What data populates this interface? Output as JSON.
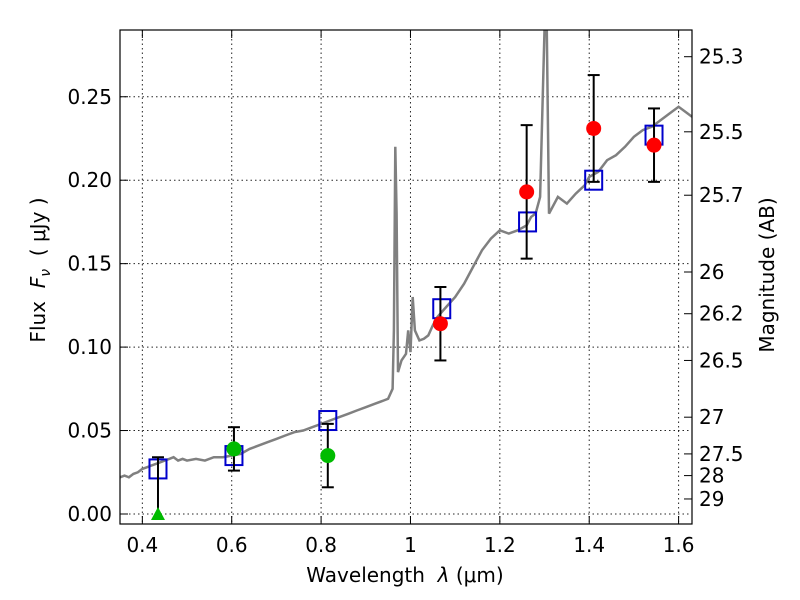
{
  "chart_data": {
    "type": "scatter",
    "xlabel_prefix": "Wavelength",
    "xlabel_symbol": "λ",
    "xlabel_unit": "(μm)",
    "ylabel_prefix": "Flux",
    "ylabel_symbol": "F",
    "ylabel_subscript": "ν",
    "ylabel_unit": "( μJy )",
    "y2label": "Magnitude (AB)",
    "xlim": [
      0.35,
      1.63
    ],
    "ylim": [
      -0.006,
      0.29
    ],
    "grid": true,
    "x_ticks": [
      0.4,
      0.6,
      0.8,
      1.0,
      1.2,
      1.4,
      1.6
    ],
    "x_tick_labels": [
      "0.4",
      "0.6",
      "0.8",
      "1",
      "1.2",
      "1.4",
      "1.6"
    ],
    "y_ticks": [
      0.0,
      0.05,
      0.1,
      0.15,
      0.2,
      0.25
    ],
    "y_tick_labels": [
      "0.00",
      "0.05",
      "0.10",
      "0.15",
      "0.20",
      "0.25"
    ],
    "mag_ticks": [
      {
        "label": "25.3",
        "flux": 0.274
      },
      {
        "label": "25.5",
        "flux": 0.229
      },
      {
        "label": "25.7",
        "flux": 0.191
      },
      {
        "label": "26",
        "flux": 0.145
      },
      {
        "label": "26.2",
        "flux": 0.12
      },
      {
        "label": "26.5",
        "flux": 0.092
      },
      {
        "label": "27",
        "flux": 0.058
      },
      {
        "label": "27.5",
        "flux": 0.036
      },
      {
        "label": "28",
        "flux": 0.023
      },
      {
        "label": "29",
        "flux": 0.009
      }
    ],
    "series": [
      {
        "kind": "line",
        "color": "#808080",
        "points": [
          [
            0.35,
            0.022
          ],
          [
            0.36,
            0.023
          ],
          [
            0.37,
            0.022
          ],
          [
            0.38,
            0.024
          ],
          [
            0.39,
            0.025
          ],
          [
            0.4,
            0.027
          ],
          [
            0.41,
            0.028
          ],
          [
            0.42,
            0.029
          ],
          [
            0.43,
            0.03
          ],
          [
            0.44,
            0.031
          ],
          [
            0.45,
            0.032
          ],
          [
            0.46,
            0.033
          ],
          [
            0.47,
            0.034
          ],
          [
            0.48,
            0.032
          ],
          [
            0.49,
            0.033
          ],
          [
            0.5,
            0.032
          ],
          [
            0.52,
            0.033
          ],
          [
            0.54,
            0.032
          ],
          [
            0.56,
            0.034
          ],
          [
            0.58,
            0.034
          ],
          [
            0.6,
            0.035
          ],
          [
            0.62,
            0.036
          ],
          [
            0.64,
            0.039
          ],
          [
            0.66,
            0.041
          ],
          [
            0.68,
            0.043
          ],
          [
            0.7,
            0.045
          ],
          [
            0.72,
            0.047
          ],
          [
            0.74,
            0.049
          ],
          [
            0.76,
            0.05
          ],
          [
            0.78,
            0.052
          ],
          [
            0.8,
            0.054
          ],
          [
            0.82,
            0.056
          ],
          [
            0.84,
            0.058
          ],
          [
            0.86,
            0.06
          ],
          [
            0.88,
            0.062
          ],
          [
            0.9,
            0.064
          ],
          [
            0.92,
            0.066
          ],
          [
            0.94,
            0.068
          ],
          [
            0.95,
            0.069
          ],
          [
            0.96,
            0.075
          ],
          [
            0.963,
            0.11
          ],
          [
            0.966,
            0.22
          ],
          [
            0.969,
            0.18
          ],
          [
            0.972,
            0.085
          ],
          [
            0.98,
            0.092
          ],
          [
            0.99,
            0.096
          ],
          [
            0.995,
            0.11
          ],
          [
            1.0,
            0.097
          ],
          [
            1.005,
            0.13
          ],
          [
            1.01,
            0.11
          ],
          [
            1.02,
            0.104
          ],
          [
            1.03,
            0.105
          ],
          [
            1.04,
            0.107
          ],
          [
            1.05,
            0.113
          ],
          [
            1.06,
            0.118
          ],
          [
            1.08,
            0.124
          ],
          [
            1.1,
            0.13
          ],
          [
            1.12,
            0.138
          ],
          [
            1.14,
            0.148
          ],
          [
            1.16,
            0.158
          ],
          [
            1.18,
            0.165
          ],
          [
            1.2,
            0.17
          ],
          [
            1.22,
            0.168
          ],
          [
            1.24,
            0.17
          ],
          [
            1.26,
            0.173
          ],
          [
            1.27,
            0.178
          ],
          [
            1.28,
            0.18
          ],
          [
            1.29,
            0.19
          ],
          [
            1.3,
            0.29
          ],
          [
            1.305,
            0.29
          ],
          [
            1.31,
            0.18
          ],
          [
            1.33,
            0.19
          ],
          [
            1.35,
            0.186
          ],
          [
            1.37,
            0.192
          ],
          [
            1.39,
            0.197
          ],
          [
            1.4,
            0.202
          ],
          [
            1.42,
            0.205
          ],
          [
            1.44,
            0.212
          ],
          [
            1.46,
            0.215
          ],
          [
            1.48,
            0.22
          ],
          [
            1.5,
            0.226
          ],
          [
            1.52,
            0.23
          ],
          [
            1.54,
            0.232
          ],
          [
            1.56,
            0.236
          ],
          [
            1.58,
            0.24
          ],
          [
            1.6,
            0.244
          ],
          [
            1.62,
            0.24
          ],
          [
            1.63,
            0.238
          ]
        ]
      },
      {
        "kind": "open-square",
        "color": "#0000cc",
        "x": [
          0.435,
          0.605,
          0.815,
          1.07,
          1.262,
          1.41,
          1.545
        ],
        "y": [
          0.027,
          0.035,
          0.056,
          0.123,
          0.175,
          0.2,
          0.227
        ]
      },
      {
        "kind": "circle",
        "color": "#ff0000",
        "x": [
          1.067,
          1.26,
          1.41,
          1.545
        ],
        "y": [
          0.114,
          0.193,
          0.231,
          0.221
        ],
        "err": [
          0.022,
          0.04,
          0.032,
          0.022
        ]
      },
      {
        "kind": "circle",
        "color": "#00bb00",
        "x": [
          0.605,
          0.815
        ],
        "y": [
          0.039,
          0.035
        ],
        "err": [
          0.013,
          0.019
        ]
      },
      {
        "kind": "triangle",
        "color": "#00bb00",
        "x": [
          0.435
        ],
        "y": [
          0.0
        ],
        "upper": [
          0.034
        ]
      }
    ]
  }
}
